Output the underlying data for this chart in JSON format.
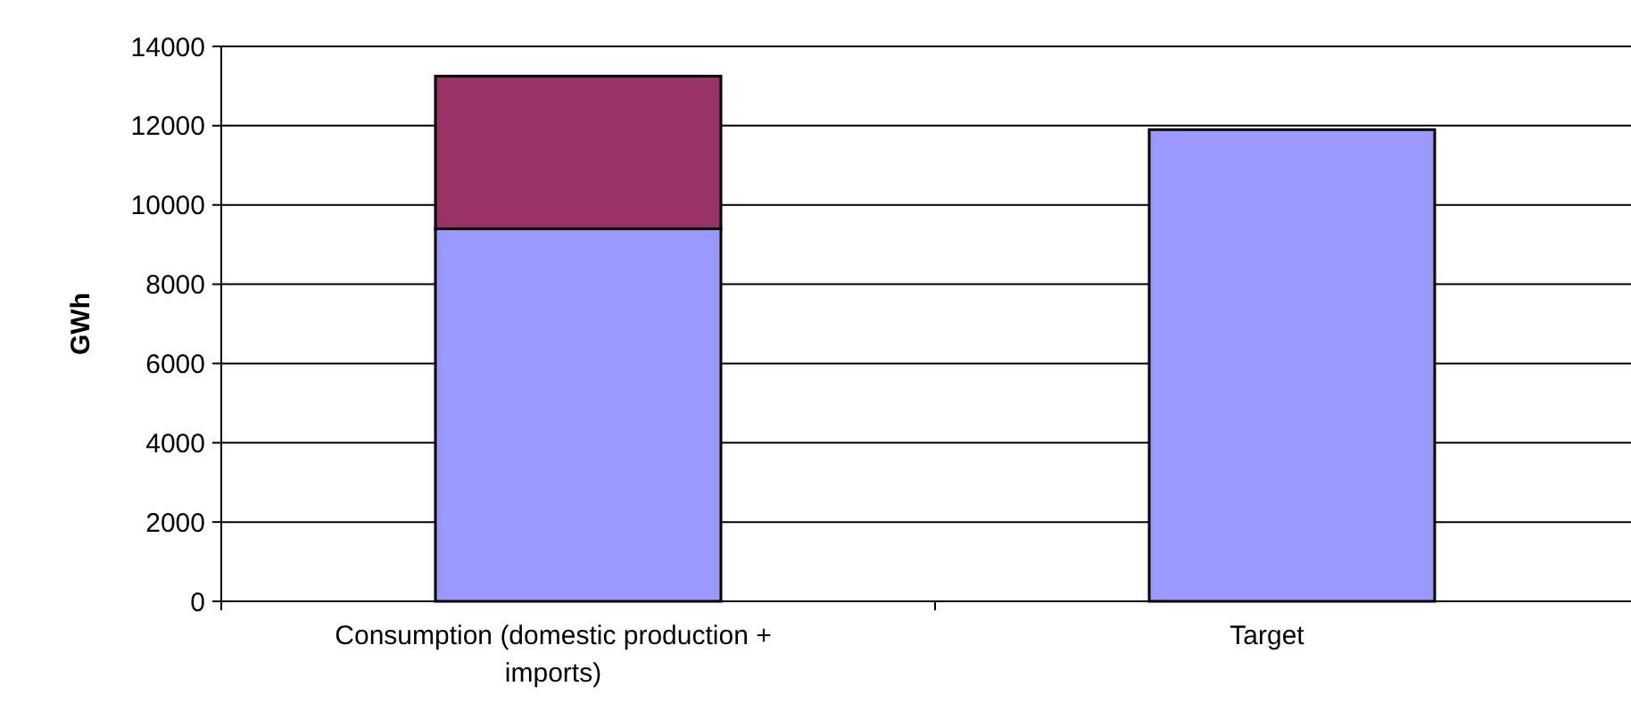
{
  "chart_data": {
    "type": "bar",
    "ylabel": "GWh",
    "categories": [
      "Consumption (domestic production + imports)",
      "Target"
    ],
    "stacked": true,
    "series": [
      {
        "color": "#9999ff",
        "values": [
          9400,
          11900
        ]
      },
      {
        "color": "#993366",
        "values": [
          3850,
          null
        ]
      }
    ],
    "ylim": [
      0,
      14000
    ],
    "yticks": [
      0,
      2000,
      4000,
      6000,
      8000,
      10000,
      12000,
      14000
    ],
    "grid": "y"
  }
}
